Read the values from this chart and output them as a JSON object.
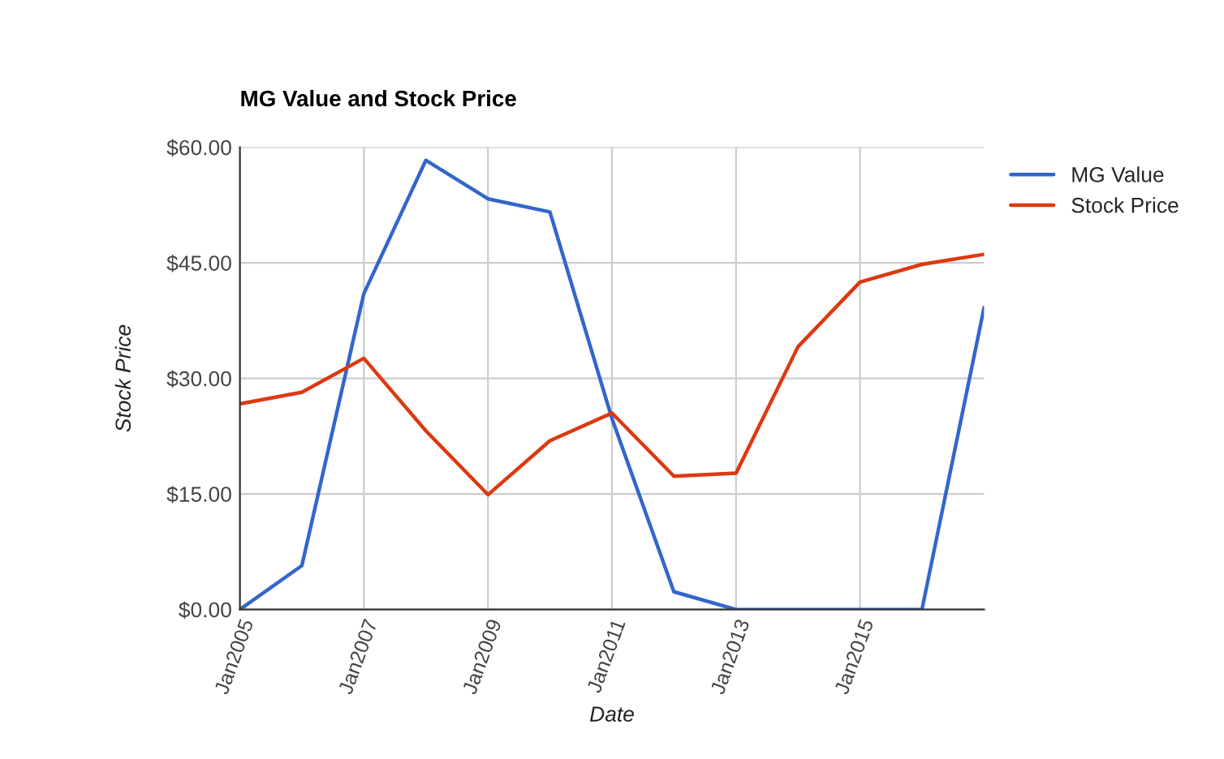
{
  "chart_data": {
    "type": "line",
    "title": "MG Value and Stock Price",
    "xlabel": "Date",
    "ylabel": "Stock Price",
    "x": [
      "2005-01",
      "2006-01",
      "2007-01",
      "2008-01",
      "2009-01",
      "2010-01",
      "2011-01",
      "2012-01",
      "2013-01",
      "2014-01",
      "2015-01",
      "2016-01",
      "2017-01"
    ],
    "series": [
      {
        "name": "MG Value",
        "color": "#3366cc",
        "values": [
          0,
          5.7,
          41,
          58.3,
          53.3,
          51.6,
          24.8,
          2.3,
          0,
          0,
          0,
          0,
          39.2
        ]
      },
      {
        "name": "Stock Price",
        "color": "#dc3912",
        "values": [
          26.7,
          28.2,
          32.6,
          23.2,
          14.9,
          21.9,
          25.5,
          17.3,
          17.7,
          34.1,
          42.5,
          44.8,
          46.1
        ]
      }
    ],
    "xlim": [
      "2005-01",
      "2017-01"
    ],
    "xticks": [
      {
        "value": "2005-01",
        "label": "Jan2005"
      },
      {
        "value": "2007-01",
        "label": "Jan2007"
      },
      {
        "value": "2009-01",
        "label": "Jan2009"
      },
      {
        "value": "2011-01",
        "label": "Jan2011"
      },
      {
        "value": "2013-01",
        "label": "Jan2013"
      },
      {
        "value": "2015-01",
        "label": "Jan2015"
      }
    ],
    "ylim": [
      0,
      60
    ],
    "yticks": [
      {
        "value": 0,
        "label": "$0.00"
      },
      {
        "value": 15,
        "label": "$15.00"
      },
      {
        "value": 30,
        "label": "$30.00"
      },
      {
        "value": 45,
        "label": "$45.00"
      },
      {
        "value": 60,
        "label": "$60.00"
      }
    ],
    "grid": true,
    "legend": "right",
    "marker": "none",
    "line_style": "solid"
  }
}
